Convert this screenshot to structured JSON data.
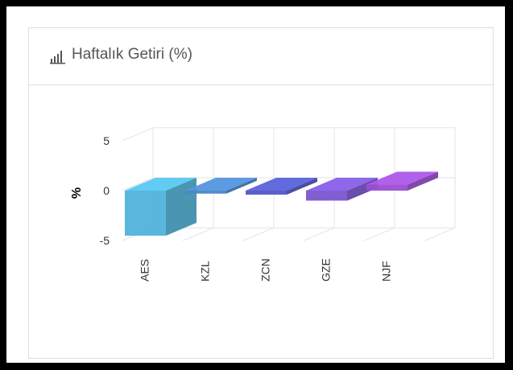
{
  "panel": {
    "title": "Haftalık Getiri (%)",
    "icon": "bar-chart-icon"
  },
  "chart_data": {
    "type": "bar",
    "title": "Haftalık Getiri (%)",
    "categories": [
      "AES",
      "KZL",
      "ZCN",
      "GZE",
      "NJF"
    ],
    "series": [
      {
        "values": [
          -4.5,
          -0.3,
          -0.4,
          -1.0,
          0.6
        ]
      }
    ],
    "ylabel": "%",
    "xlabel": "",
    "ylim": [
      -5,
      5
    ],
    "yticks": [
      "5",
      "0",
      "-5"
    ],
    "grid": true,
    "legend": "none",
    "three_d": true,
    "colors": [
      "#4fb3d9",
      "#4a86c8",
      "#5058c4",
      "#7a55d0",
      "#9a4ed1"
    ]
  }
}
